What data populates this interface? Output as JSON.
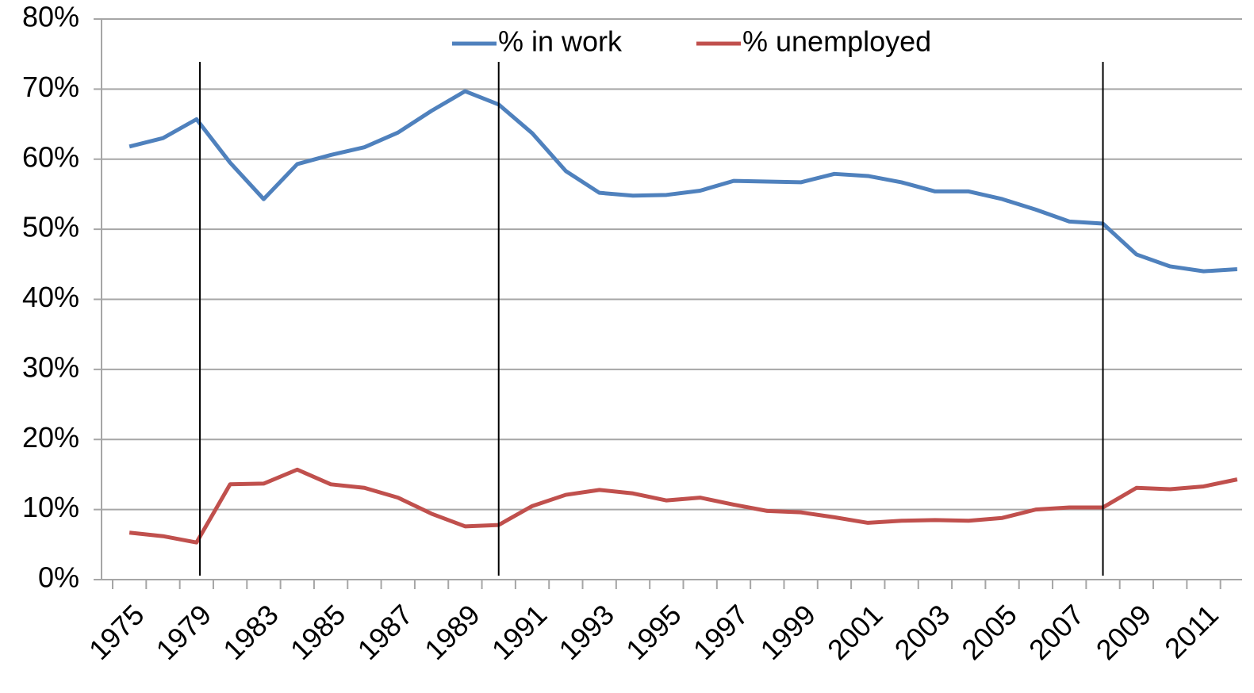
{
  "chart_data": {
    "type": "line",
    "categories": [
      "1975",
      null,
      "1979",
      null,
      "1983",
      null,
      "1985",
      null,
      "1987",
      null,
      "1989",
      null,
      "1991",
      null,
      "1993",
      null,
      "1995",
      null,
      "1997",
      null,
      "1999",
      null,
      "2001",
      null,
      "2003",
      null,
      "2005",
      null,
      "2007",
      null,
      "2009",
      null,
      "2011",
      null
    ],
    "series": [
      {
        "name": "% in work",
        "color": "#4f81bd",
        "values": [
          61.8,
          63.0,
          65.7,
          59.5,
          54.3,
          59.3,
          60.6,
          61.7,
          63.8,
          66.9,
          69.7,
          67.8,
          63.7,
          58.3,
          55.2,
          54.8,
          54.9,
          55.5,
          56.9,
          56.8,
          56.7,
          57.9,
          57.6,
          56.7,
          55.4,
          55.4,
          54.3,
          52.8,
          51.1,
          50.8,
          46.4,
          44.7,
          44.0,
          44.3
        ]
      },
      {
        "name": "% unemployed",
        "color": "#c0504d",
        "values": [
          6.7,
          6.2,
          5.3,
          13.6,
          13.7,
          15.7,
          13.6,
          13.1,
          11.7,
          9.4,
          7.6,
          7.8,
          10.5,
          12.1,
          12.8,
          12.3,
          11.3,
          11.7,
          10.7,
          9.8,
          9.6,
          8.9,
          8.1,
          8.4,
          8.5,
          8.4,
          8.8,
          10.0,
          10.3,
          10.3,
          13.1,
          12.9,
          13.3,
          14.3
        ]
      }
    ],
    "ylim": [
      0,
      80
    ],
    "yticks": [
      {
        "value": 0,
        "label": "0%"
      },
      {
        "value": 10,
        "label": "10%"
      },
      {
        "value": 20,
        "label": "20%"
      },
      {
        "value": 30,
        "label": "30%"
      },
      {
        "value": 40,
        "label": "40%"
      },
      {
        "value": 50,
        "label": "50%"
      },
      {
        "value": 60,
        "label": "60%"
      },
      {
        "value": 70,
        "label": "70%"
      },
      {
        "value": 80,
        "label": "80%"
      }
    ],
    "vlines": [
      2.1,
      11,
      29
    ],
    "grid": true,
    "legend": "top"
  }
}
